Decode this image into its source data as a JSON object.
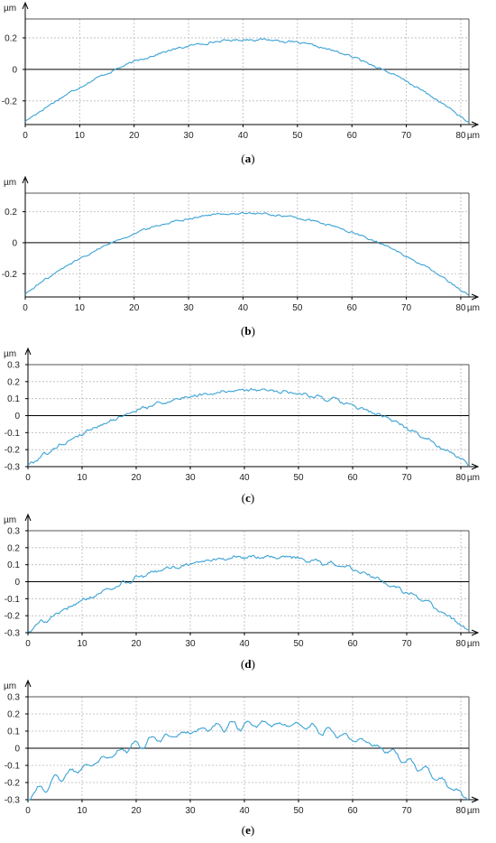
{
  "figure": {
    "chart_data": [
      {
        "type": "line",
        "caption": "(a)",
        "caption_letter": "a",
        "ylabel": "µm",
        "xlabel": "µm",
        "xlim": [
          0,
          81.5
        ],
        "ylim": [
          -0.35,
          0.32
        ],
        "xticks": [
          "0",
          "10",
          "20",
          "30",
          "40",
          "50",
          "60",
          "70",
          "80"
        ],
        "yticks": [
          "0.2",
          "0",
          "-0.2"
        ],
        "ytick_values": [
          0.2,
          0,
          -0.2
        ],
        "peak_x": 42,
        "peak_y": 0.19,
        "left_y": -0.33,
        "right_y": -0.34,
        "noise": 0.006,
        "ripple": 0,
        "line_color": "#3ca3d5",
        "grid": true
      },
      {
        "type": "line",
        "caption": "(b)",
        "caption_letter": "b",
        "ylabel": "µm",
        "xlabel": "µm",
        "xlim": [
          0,
          81.5
        ],
        "ylim": [
          -0.35,
          0.32
        ],
        "xticks": [
          "0",
          "10",
          "20",
          "30",
          "40",
          "50",
          "60",
          "70",
          "80"
        ],
        "yticks": [
          "0.2",
          "0",
          "-0.2"
        ],
        "ytick_values": [
          0.2,
          0,
          -0.2
        ],
        "peak_x": 40,
        "peak_y": 0.19,
        "left_y": -0.33,
        "right_y": -0.34,
        "noise": 0.006,
        "ripple": 0,
        "line_color": "#3ca3d5",
        "grid": true
      },
      {
        "type": "line",
        "caption": "(c)",
        "caption_letter": "c",
        "ylabel": "µm",
        "xlabel": "µm",
        "xlim": [
          0,
          81.5
        ],
        "ylim": [
          -0.3,
          0.3
        ],
        "xticks": [
          "0",
          "10",
          "20",
          "30",
          "40",
          "50",
          "60",
          "70",
          "80"
        ],
        "yticks": [
          "0.3",
          "0.2",
          "0.1",
          "0",
          "-0.1",
          "-0.2",
          "-0.3"
        ],
        "ytick_values": [
          0.3,
          0.2,
          0.1,
          0,
          -0.1,
          -0.2,
          -0.3
        ],
        "peak_x": 42,
        "peak_y": 0.15,
        "left_y": -0.29,
        "right_y": -0.29,
        "noise": 0.008,
        "ripple": 0.008,
        "line_color": "#3ca3d5",
        "grid": true
      },
      {
        "type": "line",
        "caption": "(d)",
        "caption_letter": "d",
        "ylabel": "µm",
        "xlabel": "µm",
        "xlim": [
          0,
          81.5
        ],
        "ylim": [
          -0.3,
          0.3
        ],
        "xticks": [
          "0",
          "10",
          "20",
          "30",
          "40",
          "50",
          "60",
          "70",
          "80"
        ],
        "yticks": [
          "0.3",
          "0.2",
          "0.1",
          "0",
          "-0.1",
          "-0.2",
          "-0.3"
        ],
        "ytick_values": [
          0.3,
          0.2,
          0.1,
          0,
          -0.1,
          -0.2,
          -0.3
        ],
        "peak_x": 44,
        "peak_y": 0.15,
        "left_y": -0.29,
        "right_y": -0.29,
        "noise": 0.009,
        "ripple": 0.01,
        "line_color": "#3ca3d5",
        "grid": true
      },
      {
        "type": "line",
        "caption": "(e)",
        "caption_letter": "e",
        "ylabel": "µm",
        "xlabel": "µm",
        "xlim": [
          0,
          81.5
        ],
        "ylim": [
          -0.3,
          0.3
        ],
        "xticks": [
          "0",
          "10",
          "20",
          "30",
          "40",
          "50",
          "60",
          "70",
          "80"
        ],
        "yticks": [
          "0.3",
          "0.2",
          "0.1",
          "0",
          "-0.1",
          "-0.2",
          "-0.3"
        ],
        "ytick_values": [
          0.3,
          0.2,
          0.1,
          0,
          -0.1,
          -0.2,
          -0.3
        ],
        "peak_x": 44,
        "peak_y": 0.14,
        "left_y": -0.28,
        "right_y": -0.3,
        "noise": 0.008,
        "ripple": 0.03,
        "line_color": "#3ca3d5",
        "grid": true
      }
    ]
  }
}
